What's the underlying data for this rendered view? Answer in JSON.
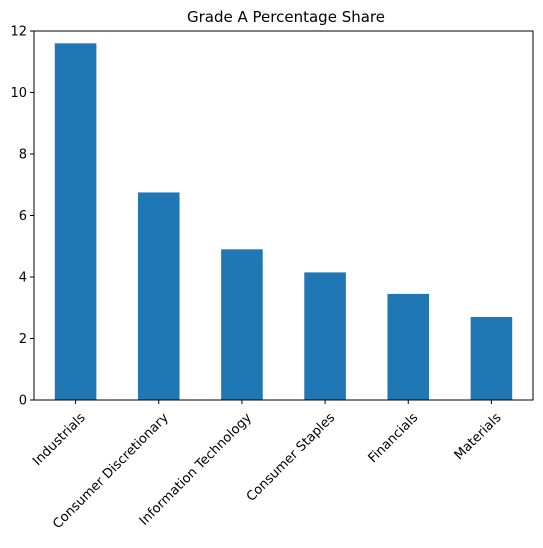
{
  "chart_data": {
    "type": "bar",
    "title": "Grade A Percentage Share",
    "xlabel": "",
    "ylabel": "",
    "categories": [
      "Industrials",
      "Consumer Discretionary",
      "Information Technology",
      "Consumer Staples",
      "Financials",
      "Materials"
    ],
    "values": [
      11.6,
      6.75,
      4.9,
      4.15,
      3.45,
      2.7
    ],
    "ylim": [
      0,
      12
    ],
    "yticks": [
      "0",
      "2",
      "4",
      "6",
      "8",
      "10",
      "12"
    ],
    "grid": false,
    "legend": "none",
    "bar_color": "#1f77b4"
  }
}
